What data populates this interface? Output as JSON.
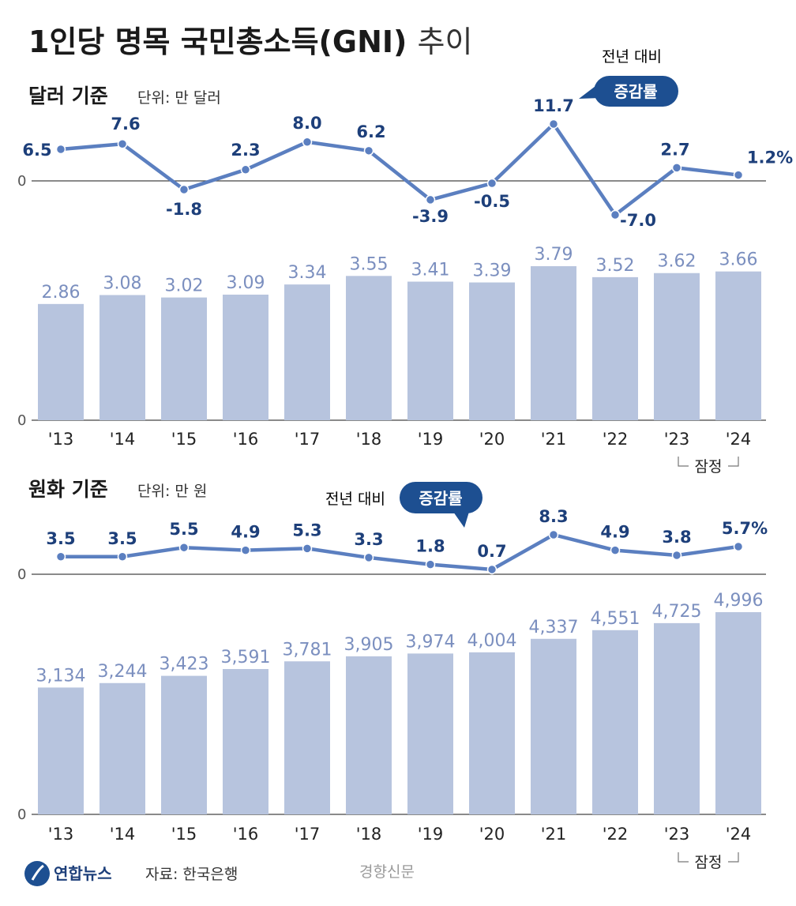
{
  "title": {
    "main": "1인당 명목 국민총소득(GNI)",
    "sub": "추이"
  },
  "colors": {
    "line": "#5b7fc0",
    "bar": "#b7c4de",
    "label": "#1d3f7a",
    "bar_label": "#7b8fbf",
    "badge": "#1d4f91",
    "axis": "#444444"
  },
  "callout": {
    "text": "전년 대비",
    "badge": "증감률"
  },
  "provisional": {
    "label": "잠정",
    "applies_to": "'24"
  },
  "footer": {
    "brand": "연합뉴스",
    "source": "자료: 한국은행",
    "watermark": "경향신문"
  },
  "chart_data": [
    {
      "type": "line",
      "section_title": "달러 기준",
      "unit": "단위: 만 달러",
      "title": "",
      "x": [
        "'13",
        "'14",
        "'15",
        "'16",
        "'17",
        "'18",
        "'19",
        "'20",
        "'21",
        "'22",
        "'23",
        "'24"
      ],
      "values": [
        6.5,
        7.6,
        -1.8,
        2.3,
        8.0,
        6.2,
        -3.9,
        -0.5,
        11.7,
        -7.0,
        2.7,
        1.2
      ],
      "labels": [
        "6.5",
        "7.6",
        "-1.8",
        "2.3",
        "8.0",
        "6.2",
        "-3.9",
        "-0.5",
        "11.7",
        "-7.0",
        "2.7",
        "1.2%"
      ],
      "zero_label": "0",
      "ylim": [
        -7.0,
        11.7
      ]
    },
    {
      "type": "bar",
      "section_title": "달러 기준",
      "unit": "단위: 만 달러",
      "title": "",
      "categories": [
        "'13",
        "'14",
        "'15",
        "'16",
        "'17",
        "'18",
        "'19",
        "'20",
        "'21",
        "'22",
        "'23",
        "'24"
      ],
      "values": [
        2.86,
        3.08,
        3.02,
        3.09,
        3.34,
        3.55,
        3.41,
        3.39,
        3.79,
        3.52,
        3.62,
        3.66
      ],
      "labels": [
        "2.86",
        "3.08",
        "3.02",
        "3.09",
        "3.34",
        "3.55",
        "3.41",
        "3.39",
        "3.79",
        "3.52",
        "3.62",
        "3.66"
      ],
      "zero_label": "0",
      "ylim": [
        0,
        3.79
      ]
    },
    {
      "type": "line",
      "section_title": "원화 기준",
      "unit": "단위: 만 원",
      "title": "",
      "x": [
        "'13",
        "'14",
        "'15",
        "'16",
        "'17",
        "'18",
        "'19",
        "'20",
        "'21",
        "'22",
        "'23",
        "'24"
      ],
      "values": [
        3.5,
        3.5,
        5.5,
        4.9,
        5.3,
        3.3,
        1.8,
        0.7,
        8.3,
        4.9,
        3.8,
        5.7
      ],
      "labels": [
        "3.5",
        "3.5",
        "5.5",
        "4.9",
        "5.3",
        "3.3",
        "1.8",
        "0.7",
        "8.3",
        "4.9",
        "3.8",
        "5.7%"
      ],
      "zero_label": "0",
      "ylim": [
        0,
        8.3
      ]
    },
    {
      "type": "bar",
      "section_title": "원화 기준",
      "unit": "단위: 만 원",
      "title": "",
      "categories": [
        "'13",
        "'14",
        "'15",
        "'16",
        "'17",
        "'18",
        "'19",
        "'20",
        "'21",
        "'22",
        "'23",
        "'24"
      ],
      "values": [
        3134,
        3244,
        3423,
        3591,
        3781,
        3905,
        3974,
        4004,
        4337,
        4551,
        4725,
        4996
      ],
      "labels": [
        "3,134",
        "3,244",
        "3,423",
        "3,591",
        "3,781",
        "3,905",
        "3,974",
        "4,004",
        "4,337",
        "4,551",
        "4,725",
        "4,996"
      ],
      "zero_label": "0",
      "ylim": [
        0,
        4996
      ]
    }
  ]
}
